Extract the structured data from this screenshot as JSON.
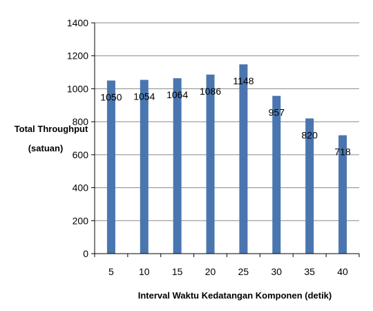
{
  "chart_data": {
    "type": "bar",
    "categories": [
      "5",
      "10",
      "15",
      "20",
      "25",
      "30",
      "35",
      "40"
    ],
    "values": [
      1050,
      1054,
      1064,
      1086,
      1148,
      957,
      820,
      718
    ],
    "data_labels": [
      "1050",
      "1054",
      "1064",
      "1086",
      "1148",
      "957",
      "820",
      "718"
    ],
    "title": "",
    "xlabel": "Interval Waktu Kedatangan Komponen (detik)",
    "ylabel_line1": "Total Throughput",
    "ylabel_line2": "(satuan)",
    "ylim": [
      0,
      1400
    ],
    "yticks": [
      "0",
      "200",
      "400",
      "600",
      "800",
      "1000",
      "1200",
      "1400"
    ],
    "grid": "horizontal",
    "legend": "none",
    "bar_color": "#4a76b0",
    "grid_color": "#888888"
  }
}
